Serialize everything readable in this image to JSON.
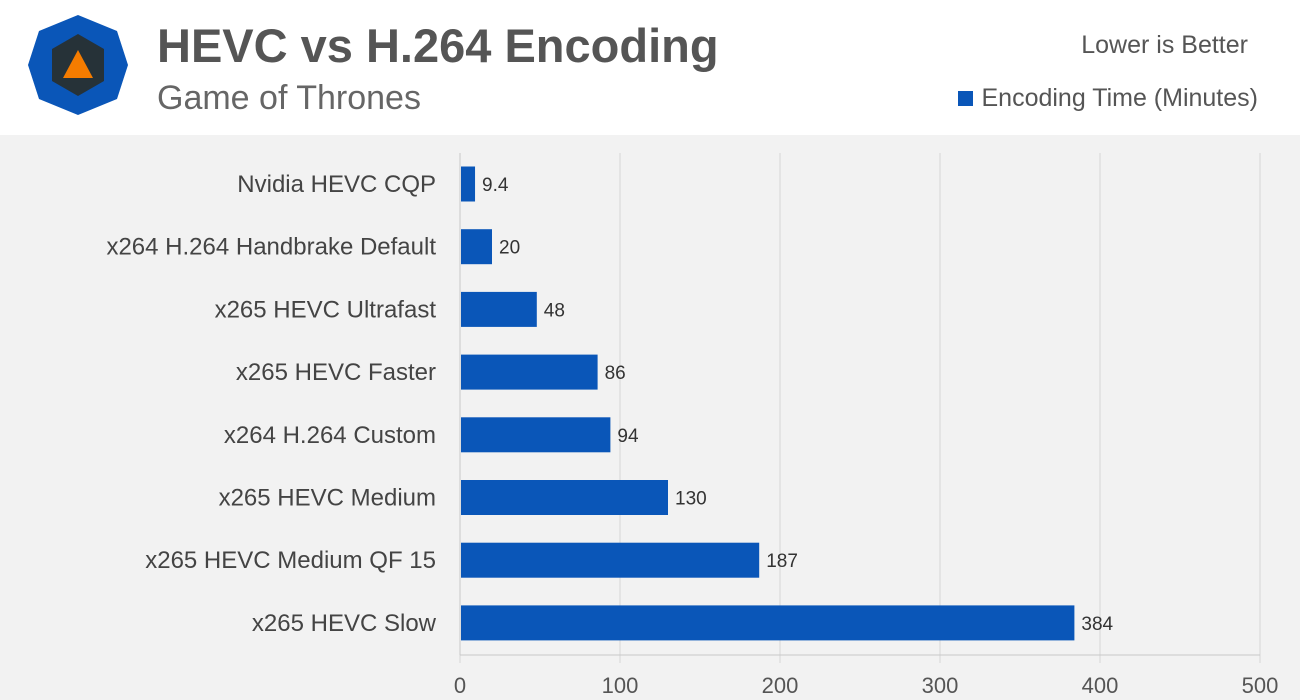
{
  "header": {
    "title": "HEVC vs H.264 Encoding",
    "subtitle": "Game of Thrones",
    "note": "Lower is Better",
    "legend_label": "Encoding Time (Minutes)"
  },
  "colors": {
    "bar": "#0a56b8",
    "logo_outer": "#0a56b8",
    "logo_inner": "#263238",
    "logo_accent": "#f57c00"
  },
  "chart_data": {
    "type": "bar",
    "orientation": "horizontal",
    "categories": [
      "Nvidia HEVC CQP",
      "x264 H.264 Handbrake Default",
      "x265 HEVC Ultrafast",
      "x265 HEVC Faster",
      "x264 H.264 Custom",
      "x265 HEVC Medium",
      "x265 HEVC Medium QF 15",
      "x265 HEVC Slow"
    ],
    "series": [
      {
        "name": "Encoding Time (Minutes)",
        "values": [
          9.4,
          20,
          48,
          86,
          94,
          130,
          187,
          384
        ]
      }
    ],
    "xlim": [
      0,
      500
    ],
    "xticks": [
      0,
      100,
      200,
      300,
      400,
      500
    ],
    "grid": true,
    "legend_position": "top-right"
  }
}
